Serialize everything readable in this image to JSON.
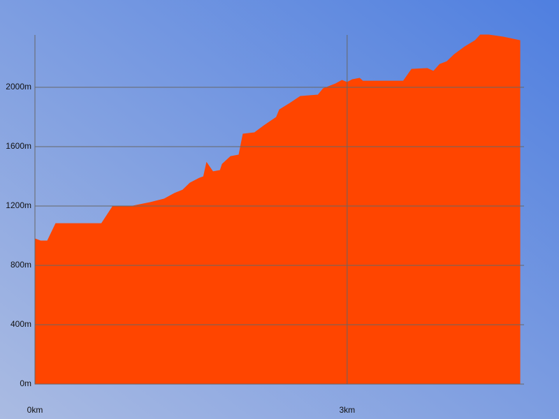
{
  "chart_data": {
    "type": "area",
    "x": [
      0,
      0.054,
      0.12,
      0.2,
      0.64,
      0.75,
      0.94,
      1.11,
      1.24,
      1.34,
      1.42,
      1.49,
      1.58,
      1.62,
      1.65,
      1.71,
      1.78,
      1.8,
      1.88,
      1.96,
      2.0,
      2.11,
      2.2,
      2.32,
      2.35,
      2.45,
      2.55,
      2.72,
      2.77,
      2.89,
      2.95,
      3.0,
      3.05,
      3.12,
      3.15,
      3.54,
      3.62,
      3.77,
      3.83,
      3.89,
      3.96,
      4.03,
      4.13,
      4.23,
      4.28,
      4.36,
      4.5,
      4.66
    ],
    "values": [
      979,
      965,
      965,
      1082,
      1082,
      1200,
      1200,
      1224,
      1247,
      1285,
      1308,
      1355,
      1388,
      1398,
      1492,
      1431,
      1440,
      1482,
      1534,
      1544,
      1685,
      1694,
      1741,
      1798,
      1849,
      1892,
      1939,
      1948,
      1991,
      2024,
      2047,
      2033,
      2052,
      2061,
      2042,
      2042,
      2122,
      2127,
      2108,
      2155,
      2174,
      2221,
      2273,
      2315,
      2353,
      2353,
      2339,
      2315
    ],
    "color": "#ff4500",
    "xlim": [
      0,
      4.7
    ],
    "ylim": [
      0,
      2353
    ],
    "xticks": [
      {
        "value": 0,
        "label": "0km"
      },
      {
        "value": 3,
        "label": "3km"
      }
    ],
    "yticks": [
      {
        "value": 0,
        "label": "0m"
      },
      {
        "value": 400,
        "label": "400m"
      },
      {
        "value": 800,
        "label": "800m"
      },
      {
        "value": 1200,
        "label": "1200m"
      },
      {
        "value": 1600,
        "label": "1600m"
      },
      {
        "value": 2000,
        "label": "2000m"
      }
    ],
    "grid": true
  }
}
